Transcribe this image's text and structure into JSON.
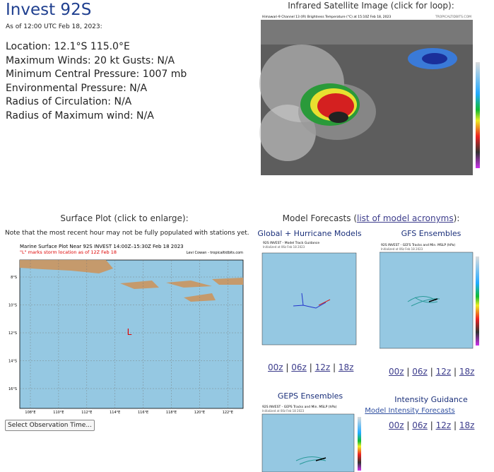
{
  "header": {
    "title": "Invest 92S",
    "as_of": "As of 12:00 UTC Feb 18, 2023:"
  },
  "info": [
    "Location: 12.1°S 115.0°E",
    "Maximum Winds: 20 kt  Gusts: N/A",
    "Minimum Central Pressure: 1007 mb",
    "Environmental Pressure: N/A",
    "Radius of Circulation: N/A",
    "Radius of Maximum wind: N/A"
  ],
  "satellite": {
    "heading": "Infrared Satellite Image (click for loop):",
    "image_title": "Himawari-9 Channel 13 (IR) Brightness Temperature (°C) at 15:10Z Feb 18, 2023",
    "credit": "TROPICALTIDBITS.COM"
  },
  "surface": {
    "heading": "Surface Plot (click to enlarge):",
    "note": "Note that the most recent hour may not be fully populated with stations yet.",
    "map_title": "Marine Surface Plot Near 92S INVEST 14:00Z–15:30Z Feb 18 2023",
    "map_subtitle": "\"L\" marks storm location as of 12Z Feb 18",
    "credit": "Levi Cowan - tropicaltidbits.com",
    "marker": "L",
    "lat_labels": [
      "8°S",
      "10°S",
      "12°S",
      "14°S",
      "16°S"
    ],
    "lon_labels": [
      "108°E",
      "110°E",
      "112°E",
      "114°E",
      "116°E",
      "118°E",
      "120°E",
      "122°E"
    ],
    "select": "Select Observation Time..."
  },
  "models": {
    "heading_prefix": "Model Forecasts (",
    "heading_link": "list of model acronyms",
    "heading_suffix": "):",
    "separator": "|",
    "global": {
      "title": "Global + Hurricane Models",
      "image_title": "92S INVEST - Model Track Guidance",
      "image_subtitle": "Initialized at 06z Feb 18 2023",
      "links": [
        "00z",
        "06z",
        "12z",
        "18z"
      ]
    },
    "gfs": {
      "title": "GFS Ensembles",
      "image_title": "92S INVEST - GEFS Tracks and Min. MSLP (hPa)",
      "image_subtitle": "Initialized at 06z Feb 18 2023",
      "links": [
        "00z",
        "06z",
        "12z",
        "18z"
      ]
    },
    "geps": {
      "title": "GEPS Ensembles",
      "image_title": "92S INVEST - GEPS Tracks and Min. MSLP (hPa)",
      "image_subtitle": "Initialized at 00z Feb 18 2023"
    },
    "intensity": {
      "title": "Intensity Guidance",
      "link": "Model Intensity Forecasts",
      "links": [
        "00z",
        "06z",
        "12z",
        "18z"
      ]
    }
  }
}
